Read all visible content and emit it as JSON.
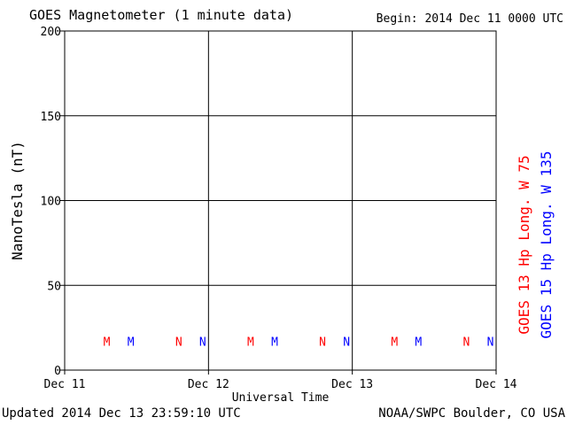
{
  "header": {
    "title": "GOES Magnetometer (1 minute data)",
    "begin": "Begin:  2014 Dec 11 0000 UTC"
  },
  "footer": {
    "updated": "Updated 2014 Dec 13 23:59:10 UTC",
    "credit": "NOAA/SWPC Boulder, CO USA"
  },
  "chart_data": {
    "type": "line",
    "ylabel": "NanoTesla (nT)",
    "xlabel": "Universal Time",
    "ylim": [
      0,
      200
    ],
    "yticks": [
      0,
      50,
      100,
      150,
      200
    ],
    "xlim": [
      "Dec 11",
      "Dec 14"
    ],
    "xticks": [
      "Dec 11",
      "Dec 12",
      "Dec 13",
      "Dec 14"
    ],
    "grid": true,
    "series": [
      {
        "name": "GOES 13 Hp  Long. W 75",
        "color": "#ff0000",
        "values": []
      },
      {
        "name": "GOES 15 Hp  Long. W 135",
        "color": "#0000ff",
        "values": []
      }
    ],
    "annotations": [
      {
        "day": 0.293,
        "label": "M",
        "color": "#ff0000"
      },
      {
        "day": 0.46,
        "label": "M",
        "color": "#0000ff"
      },
      {
        "day": 0.793,
        "label": "N",
        "color": "#ff0000"
      },
      {
        "day": 0.96,
        "label": "N",
        "color": "#0000ff"
      },
      {
        "day": 1.293,
        "label": "M",
        "color": "#ff0000"
      },
      {
        "day": 1.46,
        "label": "M",
        "color": "#0000ff"
      },
      {
        "day": 1.793,
        "label": "N",
        "color": "#ff0000"
      },
      {
        "day": 1.96,
        "label": "N",
        "color": "#0000ff"
      },
      {
        "day": 2.293,
        "label": "M",
        "color": "#ff0000"
      },
      {
        "day": 2.46,
        "label": "M",
        "color": "#0000ff"
      },
      {
        "day": 2.793,
        "label": "N",
        "color": "#ff0000"
      },
      {
        "day": 2.96,
        "label": "N",
        "color": "#0000ff"
      }
    ],
    "annotation_level": 17
  }
}
